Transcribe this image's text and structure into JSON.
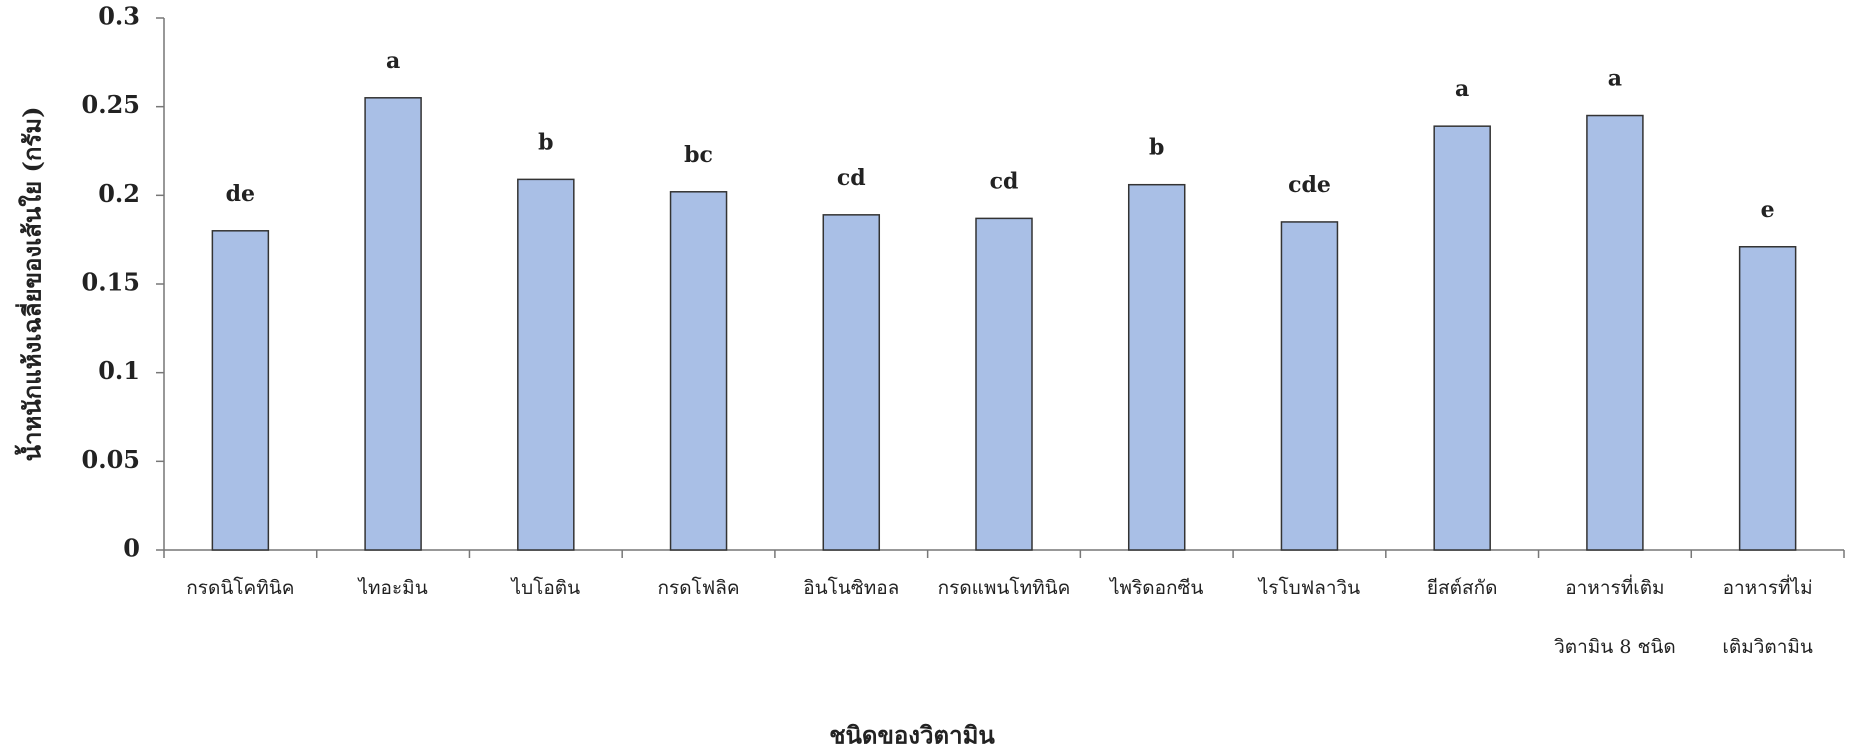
{
  "chart_data": {
    "type": "bar",
    "y_label": "น้ำหนักแห้งเฉลี่ยของเส้นใย (กรัม)",
    "x_label": "ชนิดของวิตามิน",
    "categories": [
      "กรดนิโคทินิค",
      "ไทอะมิน",
      "ไบโอติน",
      "กรดโฟลิค",
      "อินโนซิทอล",
      "กรดแพนโททินิค",
      "ไพริดอกซีน",
      "ไรโบฟลาวิน",
      "ยีสต์สกัด",
      "อาหารที่เติม\nวิตามิน 8 ชนิด",
      "อาหารที่ไม่\nเติมวิตามิน"
    ],
    "values": [
      0.18,
      0.255,
      0.209,
      0.202,
      0.189,
      0.187,
      0.206,
      0.185,
      0.239,
      0.245,
      0.171
    ],
    "annotations": [
      "de",
      "a",
      "b",
      "bc",
      "cd",
      "cd",
      "b",
      "cde",
      "a",
      "a",
      "e"
    ],
    "color": "#a9bfe6",
    "ylim": [
      0,
      0.3
    ],
    "yticks": [
      0,
      0.05,
      0.1,
      0.15,
      0.2,
      0.25,
      0.3
    ],
    "grid": false
  }
}
